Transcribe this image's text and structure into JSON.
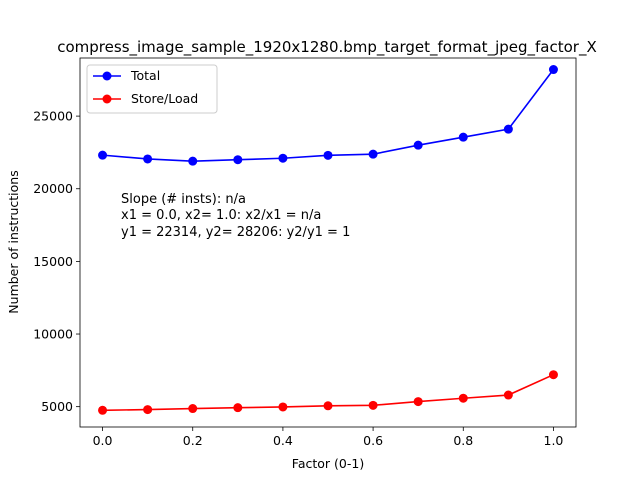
{
  "chart_data": {
    "type": "line",
    "title": "compress_image_sample_1920x1280.bmp_target_format_jpeg_factor_X",
    "xlabel": "Factor (0-1)",
    "ylabel": "Number of instructions",
    "x": [
      0.0,
      0.1,
      0.2,
      0.3,
      0.4,
      0.5,
      0.6,
      0.7,
      0.8,
      0.9,
      1.0
    ],
    "xlim": [
      -0.05,
      1.05
    ],
    "ylim": [
      3600,
      29000
    ],
    "x_ticks": [
      0.0,
      0.2,
      0.4,
      0.6,
      0.8,
      1.0
    ],
    "x_tick_labels": [
      "0.0",
      "0.2",
      "0.4",
      "0.6",
      "0.8",
      "1.0"
    ],
    "y_ticks": [
      5000,
      10000,
      15000,
      20000,
      25000
    ],
    "y_tick_labels": [
      "5000",
      "10000",
      "15000",
      "20000",
      "25000"
    ],
    "grid": false,
    "legend_position": "top-left",
    "series": [
      {
        "name": "Total",
        "color": "#0000ff",
        "marker": "circle",
        "values": [
          22314,
          22050,
          21900,
          22000,
          22100,
          22300,
          22380,
          23000,
          23550,
          24100,
          28206
        ]
      },
      {
        "name": "Store/Load",
        "color": "#ff0000",
        "marker": "circle",
        "values": [
          4750,
          4800,
          4870,
          4930,
          4980,
          5060,
          5090,
          5350,
          5580,
          5800,
          7200
        ]
      }
    ],
    "annotation": {
      "lines": [
        "Slope (# insts): n/a",
        "x1 = 0.0, x2= 1.0: x2/x1 = n/a",
        "y1 = 22314, y2= 28206: y2/y1 = 1"
      ]
    }
  }
}
